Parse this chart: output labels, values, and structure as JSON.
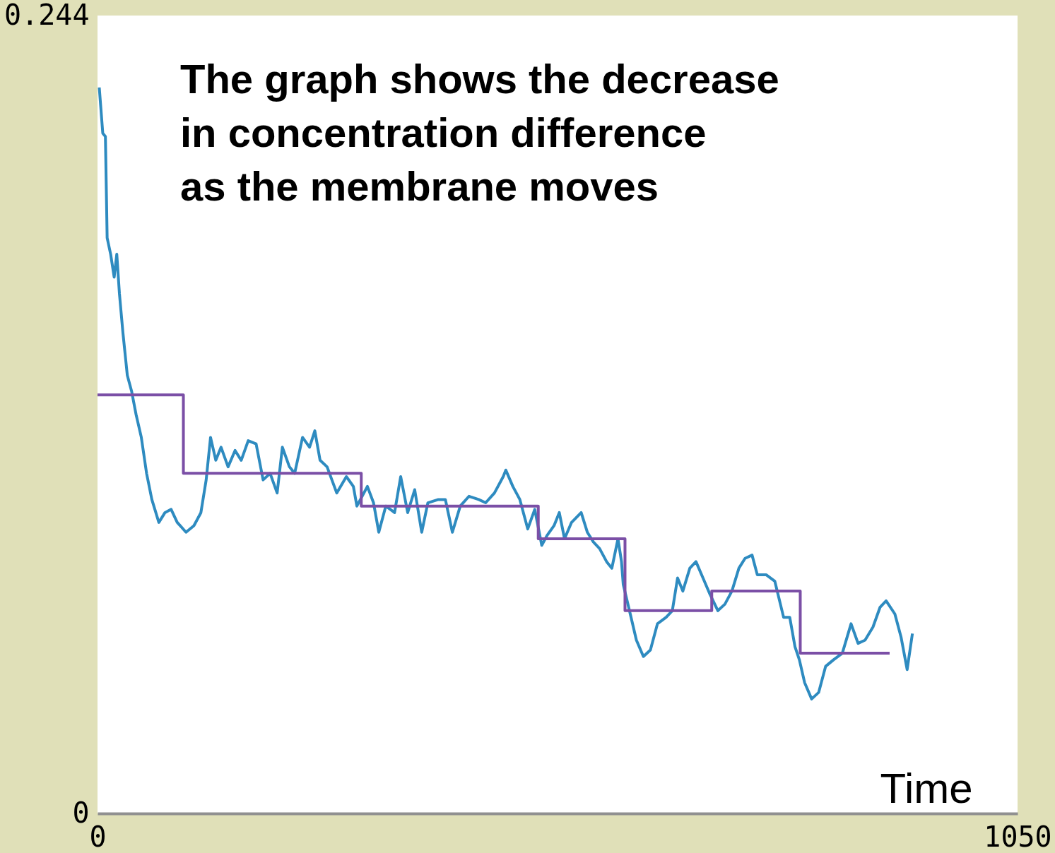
{
  "chart_data": {
    "type": "line",
    "title": "The graph shows the decrease\nin concentration difference\nas the membrane moves",
    "xlabel": "Time",
    "xlim": [
      0,
      1050
    ],
    "ylim": [
      0,
      0.244
    ],
    "xticks": [
      0,
      1050
    ],
    "yticks": [
      0,
      0.244
    ],
    "grid": false,
    "marker": "none",
    "line_style": "solid",
    "series": [
      {
        "type": "line",
        "color": "#2e8bc0",
        "x": [
          2,
          6,
          9,
          11,
          15,
          19,
          22,
          25,
          29,
          34,
          39,
          44,
          50,
          56,
          62,
          70,
          77,
          84,
          91,
          101,
          110,
          118,
          124,
          129,
          135,
          141,
          149,
          157,
          164,
          172,
          181,
          189,
          197,
          205,
          211,
          219,
          225,
          234,
          242,
          248,
          254,
          262,
          273,
          284,
          292,
          296,
          308,
          315,
          321,
          329,
          339,
          346,
          354,
          362,
          370,
          377,
          389,
          397,
          405,
          414,
          424,
          435,
          443,
          453,
          463,
          466,
          474,
          482,
          491,
          499,
          507,
          513,
          521,
          527,
          533,
          541,
          552,
          559,
          566,
          573,
          581,
          587,
          594,
          598,
          600,
          608,
          615,
          623,
          631,
          639,
          649,
          656,
          662,
          668,
          676,
          683,
          691,
          699,
          708,
          716,
          724,
          732,
          739,
          747,
          753,
          763,
          773,
          783,
          790,
          796,
          801,
          807,
          815,
          823,
          831,
          840,
          850,
          860,
          868,
          876,
          885,
          893,
          900,
          910,
          917,
          924,
          930
        ],
        "values": [
          0.222,
          0.208,
          0.207,
          0.176,
          0.171,
          0.164,
          0.171,
          0.159,
          0.147,
          0.134,
          0.129,
          0.122,
          0.115,
          0.104,
          0.096,
          0.089,
          0.092,
          0.093,
          0.089,
          0.086,
          0.088,
          0.092,
          0.102,
          0.115,
          0.108,
          0.112,
          0.106,
          0.111,
          0.108,
          0.114,
          0.113,
          0.102,
          0.104,
          0.098,
          0.112,
          0.106,
          0.104,
          0.115,
          0.112,
          0.117,
          0.108,
          0.106,
          0.098,
          0.103,
          0.1,
          0.094,
          0.1,
          0.095,
          0.086,
          0.094,
          0.092,
          0.103,
          0.092,
          0.099,
          0.086,
          0.095,
          0.096,
          0.096,
          0.086,
          0.094,
          0.097,
          0.096,
          0.095,
          0.098,
          0.103,
          0.105,
          0.1,
          0.096,
          0.087,
          0.093,
          0.082,
          0.085,
          0.088,
          0.092,
          0.084,
          0.089,
          0.092,
          0.086,
          0.083,
          0.081,
          0.077,
          0.075,
          0.084,
          0.077,
          0.07,
          0.061,
          0.053,
          0.048,
          0.05,
          0.058,
          0.06,
          0.062,
          0.072,
          0.068,
          0.075,
          0.077,
          0.072,
          0.067,
          0.062,
          0.064,
          0.068,
          0.075,
          0.078,
          0.079,
          0.073,
          0.073,
          0.071,
          0.06,
          0.06,
          0.051,
          0.047,
          0.04,
          0.035,
          0.037,
          0.045,
          0.047,
          0.049,
          0.058,
          0.052,
          0.053,
          0.057,
          0.063,
          0.065,
          0.061,
          0.054,
          0.044,
          0.055
        ]
      },
      {
        "type": "step",
        "color": "#7b4fa6",
        "x": [
          0,
          98,
          301,
          503,
          602,
          701,
          802,
          904
        ],
        "values": [
          0.128,
          0.104,
          0.094,
          0.084,
          0.062,
          0.068,
          0.049,
          0.049
        ]
      }
    ]
  }
}
